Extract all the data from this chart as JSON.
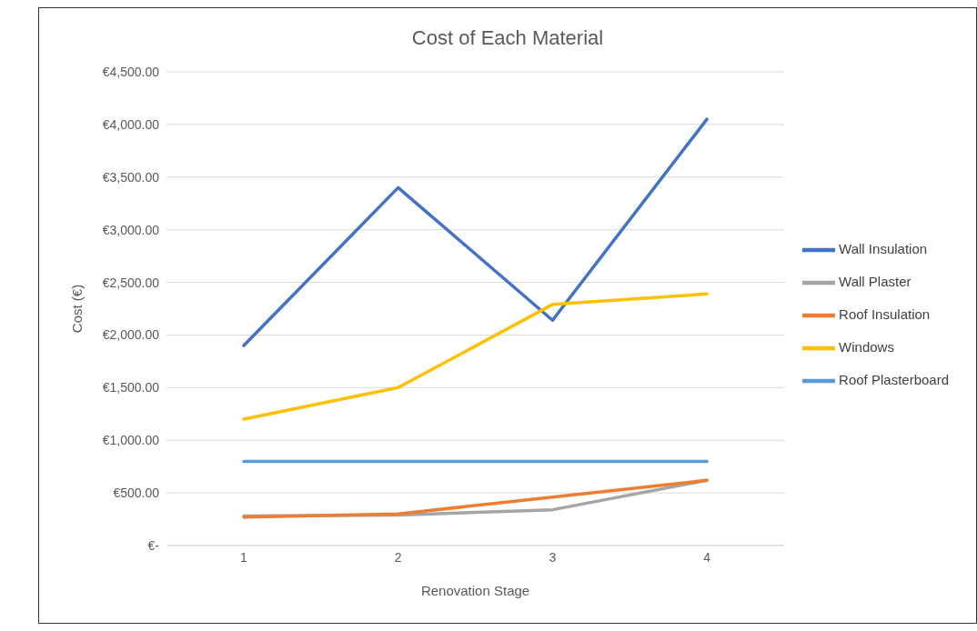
{
  "chart_data": {
    "type": "line",
    "title": "Cost of Each Material",
    "xlabel": "Renovation Stage",
    "ylabel": "Cost (€)",
    "categories": [
      "1",
      "2",
      "3",
      "4"
    ],
    "series": [
      {
        "name": "Wall Insulation",
        "color": "#4472c4",
        "values": [
          1900,
          3400,
          2140,
          4050
        ]
      },
      {
        "name": "Wall Plaster",
        "color": "#a5a5a5",
        "values": [
          280,
          290,
          340,
          620
        ]
      },
      {
        "name": "Roof Insulation",
        "color": "#ed7d31",
        "values": [
          270,
          300,
          460,
          620
        ]
      },
      {
        "name": "Windows",
        "color": "#ffc000",
        "values": [
          1200,
          1500,
          2290,
          2390
        ]
      },
      {
        "name": "Roof Plasterboard",
        "color": "#5b9bd5",
        "values": [
          800,
          800,
          800,
          800
        ]
      }
    ],
    "ylim": [
      0,
      4500
    ],
    "yticks": [
      {
        "value": 0,
        "label": "€-"
      },
      {
        "value": 500,
        "label": "€500.00"
      },
      {
        "value": 1000,
        "label": "€1,000.00"
      },
      {
        "value": 1500,
        "label": "€1,500.00"
      },
      {
        "value": 2000,
        "label": "€2,000.00"
      },
      {
        "value": 2500,
        "label": "€2,500.00"
      },
      {
        "value": 3000,
        "label": "€3,000.00"
      },
      {
        "value": 3500,
        "label": "€3,500.00"
      },
      {
        "value": 4000,
        "label": "€4,000.00"
      },
      {
        "value": 4500,
        "label": "€4,500.00"
      }
    ],
    "grid": "y",
    "legend": "right",
    "marker": "none",
    "line_style": "solid"
  }
}
